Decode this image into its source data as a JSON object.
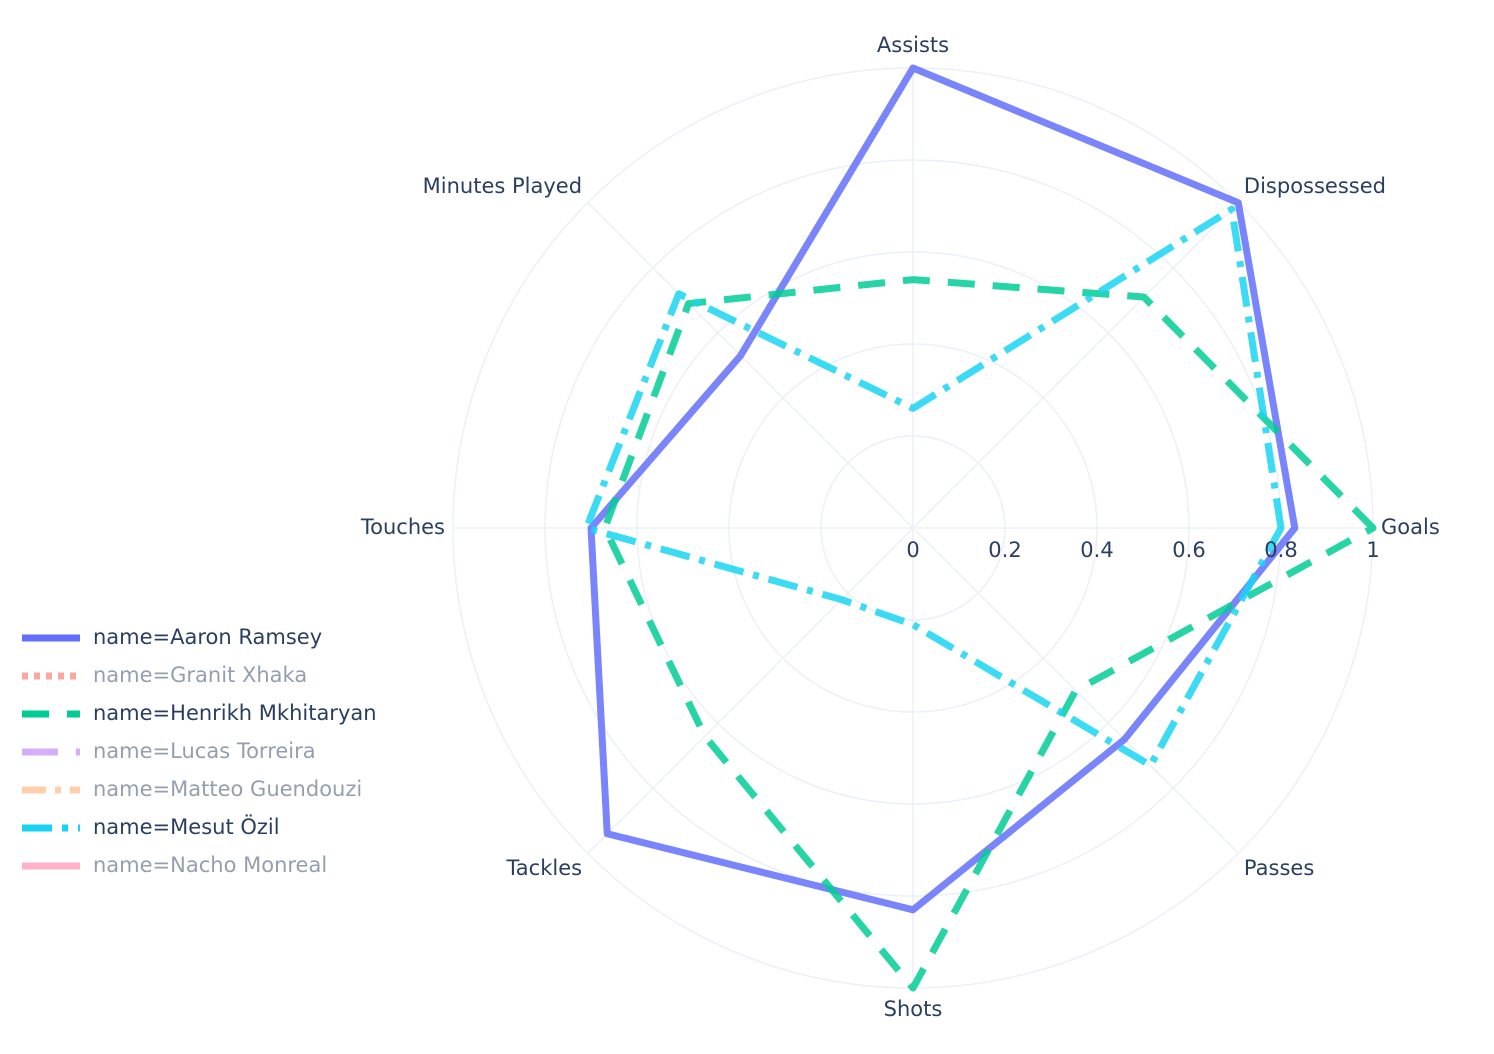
{
  "chart_data": {
    "type": "radar",
    "categories": [
      "Goals",
      "Dispossessed",
      "Assists",
      "Minutes Played",
      "Touches",
      "Tackles",
      "Shots",
      "Passes"
    ],
    "rlim": [
      0,
      1
    ],
    "rticks": [
      0,
      0.2,
      0.4,
      0.6,
      0.8,
      1
    ],
    "grid": true,
    "legend": "left",
    "series": [
      {
        "name": "name=Aaron Ramsey",
        "color": "#636efa",
        "dash": "solid",
        "values": [
          0.83,
          1.0,
          1.0,
          0.53,
          0.7,
          0.94,
          0.83,
          0.65
        ]
      },
      {
        "name": "name=Granit Xhaka",
        "color": "#EF553B",
        "dash": "dot",
        "visible": "legendonly"
      },
      {
        "name": "name=Henrikh Mkhitaryan",
        "color": "#00cc96",
        "dash": "dash",
        "values": [
          1.0,
          0.71,
          0.54,
          0.69,
          0.67,
          0.64,
          1.0,
          0.5
        ]
      },
      {
        "name": "name=Lucas Torreira",
        "color": "#ab63fa",
        "dash": "longdash",
        "visible": "legendonly"
      },
      {
        "name": "name=Matteo Guendouzi",
        "color": "#FFA15A",
        "dash": "dashdot",
        "visible": "legendonly"
      },
      {
        "name": "name=Mesut Özil",
        "color": "#19d3f3",
        "dash": "longdashdot",
        "values": [
          0.8,
          0.98,
          0.26,
          0.72,
          0.71,
          0.22,
          0.21,
          0.73
        ]
      },
      {
        "name": "name=Nacho Monreal",
        "color": "#FF6692",
        "dash": "solid",
        "visible": "legendonly"
      }
    ]
  }
}
